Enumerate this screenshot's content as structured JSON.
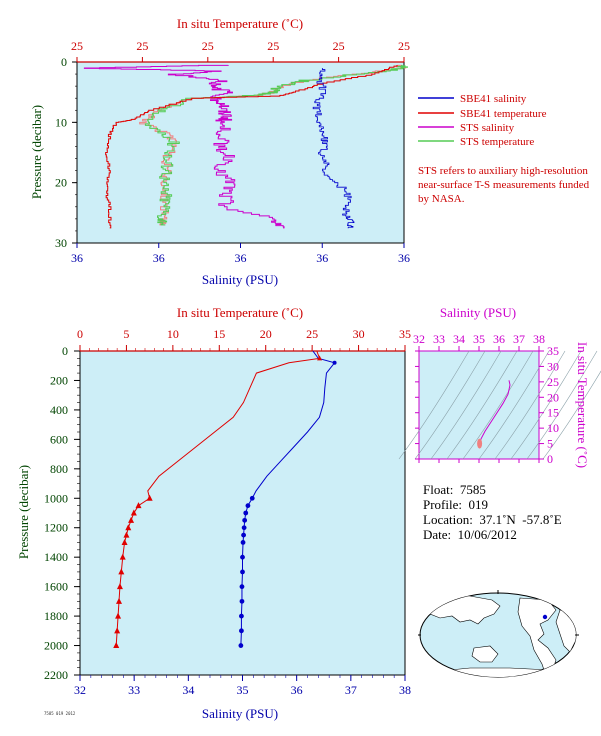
{
  "colors": {
    "bg": "#cdeef7",
    "salinity": "#0000cc",
    "temperature": "#e00000",
    "sts_salinity": "#cc00cc",
    "sts_temperature": "#55cc55",
    "sts_temperature_light": "#f08080",
    "axis_temp": "#cc0000",
    "axis_sal": "#0000aa",
    "axis_pres": "#004400",
    "ts_axis": "#cc00cc"
  },
  "info": {
    "float": "Float:  7585",
    "profile": "Profile:  019",
    "location": "Location:  37.1˚N  -57.8˚E",
    "date": "Date:  10/06/2012"
  },
  "note": "STS refers to auxiliary high-resolution near-surface T-S measurements funded by NASA.",
  "footer_tiny": "7585 019 2012",
  "chart_data": [
    {
      "type": "line",
      "title": "",
      "top_axis_label": "In situ Temperature (˚C)",
      "top_ticks": [
        "25",
        "25",
        "25",
        "25",
        "25",
        "25"
      ],
      "bottom_axis_label": "Salinity (PSU)",
      "bottom_ticks": [
        "36",
        "36",
        "36",
        "36",
        "36"
      ],
      "ylabel": "Pressure (decibar)",
      "y_ticks": [
        "0",
        "10",
        "20",
        "30"
      ],
      "ylim": [
        0,
        30
      ],
      "legend": [
        {
          "name": "SBE41 salinity",
          "color": "#0000cc"
        },
        {
          "name": "SBE41 temperature",
          "color": "#e00000"
        },
        {
          "name": "STS salinity",
          "color": "#cc00cc"
        },
        {
          "name": "STS temperature",
          "color": "#55cc55"
        }
      ],
      "legend_position": "right",
      "series_note": "x values as fraction of axis width",
      "sbe41_salinity": {
        "pressure": [
          1,
          3,
          5,
          7,
          9,
          11,
          13,
          15,
          17,
          19,
          21,
          23,
          25,
          26.5,
          27.5
        ],
        "x": [
          0.75,
          0.74,
          0.76,
          0.73,
          0.74,
          0.75,
          0.76,
          0.75,
          0.76,
          0.76,
          0.82,
          0.83,
          0.82,
          0.84,
          0.83
        ]
      },
      "sbe41_temperature": {
        "pressure": [
          0.5,
          2,
          3.5,
          5,
          5.6,
          6,
          8,
          9.5,
          10,
          12,
          15,
          18,
          21,
          24,
          27.5
        ],
        "x": [
          0.98,
          0.9,
          0.75,
          0.66,
          0.62,
          0.35,
          0.22,
          0.17,
          0.12,
          0.1,
          0.09,
          0.1,
          0.09,
          0.1,
          0.1
        ]
      },
      "sts_salinity": {
        "pressure": [
          0.5,
          1,
          1.5,
          2,
          3,
          4,
          5,
          6,
          7,
          8,
          9,
          10,
          12,
          14,
          16,
          18,
          20,
          22,
          24,
          26,
          27.5
        ],
        "x": [
          0.44,
          0.02,
          0.45,
          0.3,
          0.45,
          0.4,
          0.47,
          0.42,
          0.45,
          0.44,
          0.46,
          0.44,
          0.45,
          0.44,
          0.47,
          0.43,
          0.47,
          0.45,
          0.46,
          0.6,
          0.63
        ]
      },
      "sts_temperature": {
        "pressure": [
          0.5,
          1,
          2,
          3,
          4,
          5,
          5.5,
          6,
          8,
          10,
          12,
          14,
          16,
          18,
          20,
          22,
          24,
          26,
          27
        ],
        "x": [
          0.98,
          1.0,
          0.85,
          0.7,
          0.62,
          0.6,
          0.55,
          0.35,
          0.25,
          0.2,
          0.28,
          0.3,
          0.27,
          0.28,
          0.26,
          0.27,
          0.27,
          0.26,
          0.27
        ]
      }
    },
    {
      "type": "line",
      "title": "",
      "top_axis_label": "In situ Temperature (˚C)",
      "temp_ticks": [
        "0",
        "5",
        "10",
        "15",
        "20",
        "25",
        "30",
        "35"
      ],
      "xlim_temp": [
        0,
        35
      ],
      "bottom_axis_label": "Salinity (PSU)",
      "sal_ticks": [
        "32",
        "33",
        "34",
        "35",
        "36",
        "37",
        "38"
      ],
      "xlim_sal": [
        32,
        38
      ],
      "ylabel": "Pressure (decibar)",
      "y_ticks": [
        "0",
        "200",
        "400",
        "600",
        "800",
        "1000",
        "1200",
        "1400",
        "1600",
        "1800",
        "2000",
        "2200"
      ],
      "ylim": [
        0,
        2200
      ],
      "temperature": {
        "pressure": [
          0,
          50,
          80,
          150,
          250,
          350,
          450,
          550,
          650,
          750,
          850,
          950,
          1000,
          1050,
          1100,
          1150,
          1200,
          1250,
          1300,
          1400,
          1500,
          1600,
          1700,
          1800,
          1900,
          2000
        ],
        "values": [
          25.5,
          25.8,
          22.5,
          19.0,
          18.3,
          17.6,
          16.5,
          14.5,
          12.5,
          10.5,
          8.5,
          7.3,
          7.5,
          6.3,
          5.8,
          5.5,
          5.2,
          5.0,
          4.8,
          4.6,
          4.45,
          4.3,
          4.2,
          4.1,
          4.0,
          3.9
        ]
      },
      "temperature_markers": [
        1000,
        1050,
        1100,
        1150,
        1200,
        1250,
        1300,
        1400,
        1500,
        1600,
        1700,
        1800,
        1900,
        2000
      ],
      "salinity": {
        "pressure": [
          0,
          50,
          80,
          150,
          250,
          350,
          450,
          550,
          650,
          750,
          850,
          950,
          1000,
          1050,
          1100,
          1150,
          1200,
          1250,
          1300,
          1400,
          1500,
          1600,
          1700,
          1800,
          1900,
          2000
        ],
        "values": [
          36.3,
          36.4,
          36.7,
          36.55,
          36.52,
          36.5,
          36.42,
          36.2,
          35.95,
          35.7,
          35.45,
          35.25,
          35.18,
          35.1,
          35.06,
          35.04,
          35.03,
          35.02,
          35.01,
          35.0,
          35.0,
          34.99,
          34.99,
          34.98,
          34.98,
          34.97
        ]
      },
      "salinity_markers": [
        1000,
        1050,
        1100,
        1150,
        1200,
        1250,
        1300,
        1400,
        1500,
        1600,
        1700,
        1800,
        1900,
        2000
      ]
    },
    {
      "type": "line",
      "title": "",
      "xlabel": "Salinity (PSU)",
      "x_ticks": [
        "32",
        "33",
        "34",
        "35",
        "36",
        "37",
        "38"
      ],
      "xlim": [
        32,
        38
      ],
      "ylabel": "In situ Temperature (˚C)",
      "y_ticks": [
        "0",
        "5",
        "10",
        "15",
        "20",
        "25",
        "30",
        "35"
      ],
      "ylim": [
        0,
        35
      ],
      "ts_curve": {
        "salinity": [
          35.0,
          35.02,
          35.1,
          35.3,
          35.6,
          35.9,
          36.2,
          36.45,
          36.55,
          36.5
        ],
        "temperature": [
          4.0,
          5.0,
          6.5,
          9.0,
          12.0,
          15.0,
          18.0,
          21.0,
          24.0,
          25.5
        ]
      }
    }
  ]
}
